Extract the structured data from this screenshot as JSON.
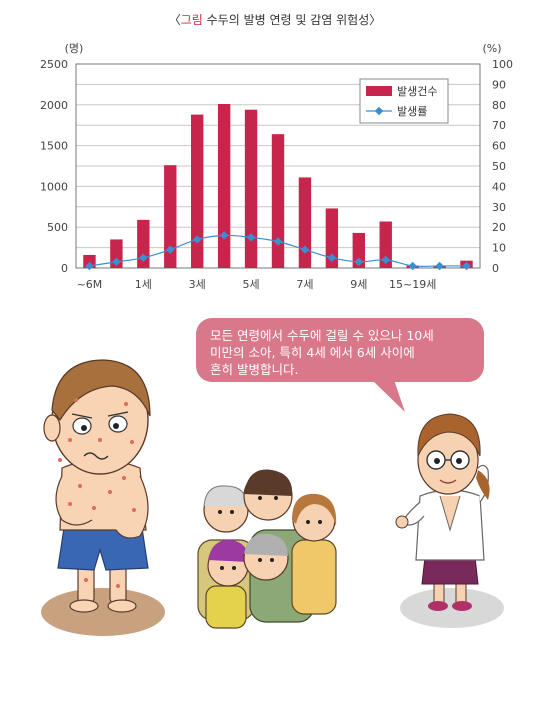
{
  "figure": {
    "title_open": "〈",
    "title_red": "그림",
    "title_rest": " 수두의 발병 연령 및 감염 위험성〉"
  },
  "chart_data": {
    "type": "bar",
    "left_unit": "(명)",
    "right_unit": "(%)",
    "categories": [
      "~6M",
      "",
      "1세",
      "",
      "3세",
      "",
      "5세",
      "",
      "7세",
      "",
      "9세",
      "",
      "15~19세",
      "",
      ""
    ],
    "x_tick_labels": [
      "~6M",
      "1세",
      "3세",
      "5세",
      "7세",
      "9세",
      "15~19세"
    ],
    "y_left_ticks": [
      "0",
      "500",
      "1000",
      "1500",
      "2000",
      "2500"
    ],
    "y_right_ticks": [
      "0",
      "10",
      "20",
      "30",
      "40",
      "50",
      "60",
      "70",
      "80",
      "90",
      "100"
    ],
    "ylim_left": [
      0,
      2500
    ],
    "ylim_right": [
      0,
      100
    ],
    "grid": true,
    "legend_position": "top-right",
    "series": [
      {
        "name": "발생건수",
        "kind": "bar",
        "axis": "left",
        "color": "#c8254d",
        "values": [
          160,
          350,
          590,
          1260,
          1880,
          2010,
          1940,
          1640,
          1110,
          730,
          430,
          570,
          30,
          30,
          90
        ]
      },
      {
        "name": "발생률",
        "kind": "line",
        "axis": "right",
        "color": "#3b8fd0",
        "values": [
          1,
          3,
          5,
          9,
          14,
          16,
          15,
          13,
          9,
          5,
          3,
          4,
          1,
          1,
          1
        ]
      }
    ]
  },
  "bubble": {
    "text": "모든 연령에서 수두에 걸릴 수 있으나 10세\n미만의  소아,  특히  4세  에서  6세  사이에\n흔히 발병합니다."
  },
  "illustration": {
    "icons": [
      "sick-boy-icon",
      "family-group-icon",
      "doctor-icon"
    ]
  }
}
